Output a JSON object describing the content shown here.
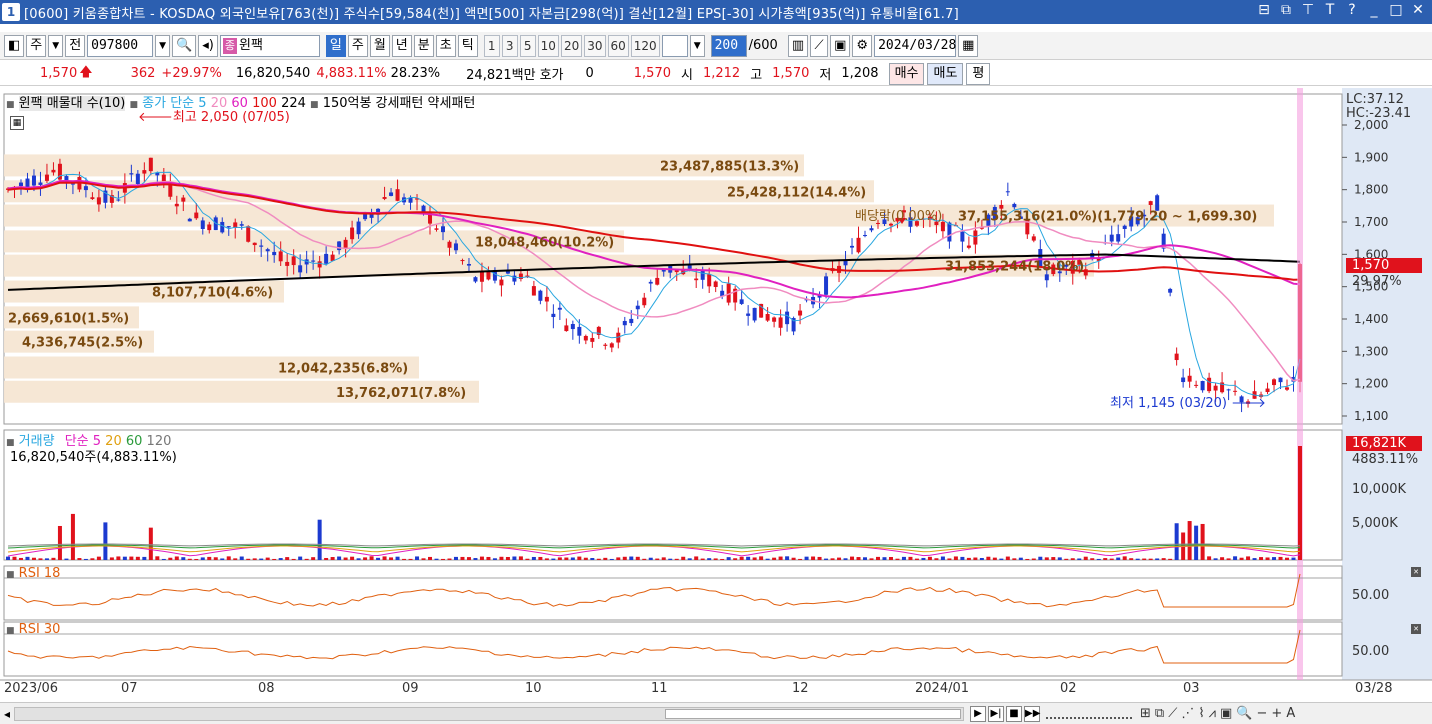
{
  "titlebar": {
    "window_num": "1",
    "title": "[0600] 키움종합차트 - KOSDAQ 외국인보유[763(천)] 주식수[59,584(천)] 액면[500] 자본금[298(억)] 결산[12월] EPS[-30] 시가총액[935(억)] 유통비율[61.7]",
    "ctrl_icons": [
      "restore-icon",
      "popout-icon",
      "pin-icon",
      "font-icon",
      "help-icon",
      "minimize-icon",
      "maximize-icon",
      "close-icon"
    ]
  },
  "toolbar": {
    "market": "주",
    "prev_btn": "전",
    "code": "097800",
    "name_tag": "종",
    "name": "윈팩",
    "period_tabs": [
      "일",
      "주",
      "월",
      "년",
      "분",
      "초",
      "틱"
    ],
    "active_period": "일",
    "minute_options": [
      "1",
      "3",
      "5",
      "10",
      "20",
      "30",
      "60",
      "120"
    ],
    "bar_count": "200",
    "bar_total": "/600",
    "date": "2024/03/28"
  },
  "quote": {
    "price": "1,570",
    "change": "362",
    "change_pct": "+29.97%",
    "volume": "16,820,540",
    "volume_ratio": "4,883.11%",
    "turnover": "28.23%",
    "amount": "24,821백만",
    "hoga_label": "호가",
    "hoga": "0",
    "hoga_price": "1,570",
    "open_label": "시",
    "open": "1,212",
    "high_label": "고",
    "high": "1,570",
    "low_label": "저",
    "low": "1,208",
    "buy_btn": "매수",
    "sell_btn": "매도",
    "eval_btn": "평"
  },
  "price_panel": {
    "legend_title": "윈팩 매물대 수(10)",
    "ma_label": "종가 단순",
    "ma_periods": [
      "5",
      "20",
      "60",
      "100",
      "224"
    ],
    "extra_legend": "150억봉 강세패턴  약세패턴",
    "high_note": "최고 2,050 (07/05)",
    "low_note": "최저 1,145 (03/20)",
    "dividend_note": "배당락(0.00%)",
    "lc": "LC:37.12",
    "hc": "HC:-23.41",
    "last_price": "1,570",
    "last_pct": "29.97%",
    "y_ticks": [
      "2,000",
      "1,900",
      "1,800",
      "1,700",
      "1,600",
      "1,500",
      "1,400",
      "1,300",
      "1,200",
      "1,100"
    ],
    "volume_profile": [
      {
        "label": "23,487,885(13.3%)",
        "price": 1875
      },
      {
        "label": "25,428,112(14.4%)",
        "price": 1795
      },
      {
        "label": "37,155,316(21.0%)(1,779.20 ~ 1,699.30)",
        "price": 1720
      },
      {
        "label": "18,048,460(10.2%)",
        "price": 1640
      },
      {
        "label": "31,853,244(18.0%)",
        "price": 1565
      },
      {
        "label": "8,107,710(4.6%)",
        "price": 1485
      },
      {
        "label": "2,669,610(1.5%)",
        "price": 1405
      },
      {
        "label": "4,336,745(2.5%)",
        "price": 1330
      },
      {
        "label": "12,042,235(6.8%)",
        "price": 1250
      },
      {
        "label": "13,762,071(7.8%)",
        "price": 1175
      }
    ]
  },
  "volume_panel": {
    "title": "거래량",
    "ma_label": "단순",
    "ma_periods": [
      "5",
      "20",
      "60",
      "120"
    ],
    "current": "16,820,540주(4,883.11%)",
    "last_value": "16,821K",
    "last_pct": "4883.11%",
    "y_ticks": [
      "10,000K",
      "5,000K"
    ]
  },
  "rsi18": {
    "title": "RSI 18",
    "tick": "50.00"
  },
  "rsi30": {
    "title": "RSI 30",
    "tick": "50.00"
  },
  "x_axis": [
    "2023/06",
    "07",
    "08",
    "09",
    "10",
    "11",
    "12",
    "2024/01",
    "02",
    "03",
    "03/28"
  ],
  "colors": {
    "up": "#e0121c",
    "down": "#1c3ad0",
    "profile": "#f5e6d3",
    "ma5": "#29a7e0",
    "ma20": "#f08cc0",
    "ma60": "#e020c0",
    "ma100": "#e01010",
    "ma224": "#000000"
  }
}
